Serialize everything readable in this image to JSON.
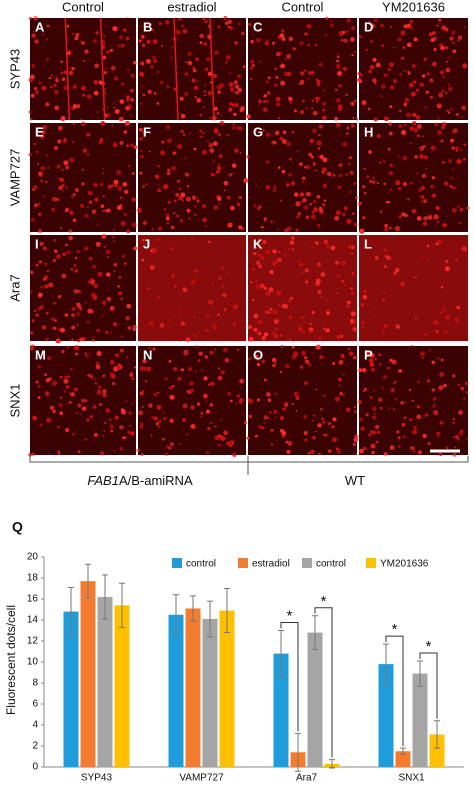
{
  "figure": {
    "columns": [
      "Control",
      "estradiol",
      "Control",
      "YM201636"
    ],
    "rows": [
      "SYP43",
      "VAMP727",
      "Ara7",
      "SNX1"
    ],
    "panels": [
      "A",
      "B",
      "C",
      "D",
      "E",
      "F",
      "G",
      "H",
      "I",
      "J",
      "K",
      "L",
      "M",
      "N",
      "O",
      "P"
    ],
    "groups": [
      {
        "parts": [
          "FAB1",
          "A/B-amiRNA"
        ]
      },
      {
        "parts": [
          "WT"
        ]
      }
    ],
    "panel_label": "Q"
  },
  "chart_data": {
    "type": "bar",
    "y_label": "Fluorescent dots/cell",
    "categories": [
      "SYP43",
      "VAMP727",
      "Ara7",
      "SNX1"
    ],
    "series": [
      {
        "name": "control",
        "color": "#1f9ddb",
        "values": [
          14.8,
          14.5,
          10.8,
          9.8
        ],
        "errors": [
          2.3,
          1.9,
          2.2,
          1.9
        ]
      },
      {
        "name": "estradiol",
        "color": "#f47c30",
        "values": [
          17.7,
          15.1,
          1.4,
          1.5
        ],
        "errors": [
          1.6,
          1.2,
          1.8,
          0.3
        ]
      },
      {
        "name": "control",
        "color": "#a5a5a5",
        "values": [
          16.2,
          14.1,
          12.8,
          8.9
        ],
        "errors": [
          2.1,
          1.7,
          1.6,
          1.2
        ]
      },
      {
        "name": "YM201636",
        "color": "#ffc000",
        "values": [
          15.4,
          14.9,
          0.3,
          3.1
        ],
        "errors": [
          2.1,
          2.1,
          0.4,
          1.3
        ]
      }
    ],
    "annotations": [
      "*",
      "*",
      "*",
      "*"
    ],
    "ylim": [
      0,
      20
    ],
    "yticks": [
      0,
      2,
      4,
      6,
      8,
      10,
      12,
      14,
      16,
      18,
      20
    ],
    "grid": false
  }
}
